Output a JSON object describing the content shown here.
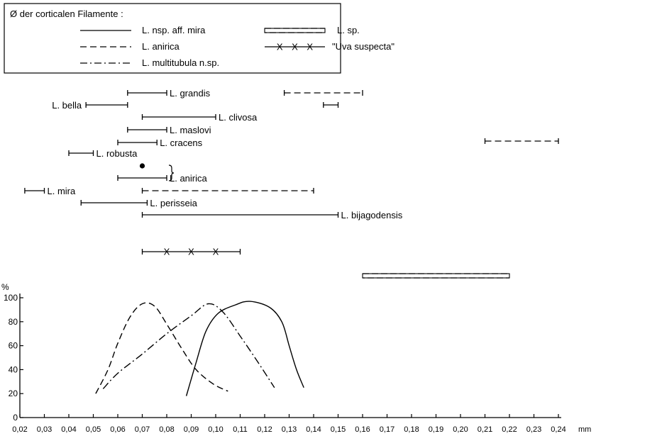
{
  "chart_data": [
    {
      "type": "range",
      "title": "Ø der corticalen Filamente :",
      "legend": [
        {
          "label": "L. nsp. aff. mira",
          "style": "solid"
        },
        {
          "label": "L. sp.",
          "style": "double-dashed"
        },
        {
          "label": "L. anirica",
          "style": "dashed"
        },
        {
          "label": "\"Uva suspecta\"",
          "style": "cross"
        },
        {
          "label": "L. multitubula n.sp.",
          "style": "dashdot"
        }
      ],
      "ranges": [
        {
          "label": "L. grandis",
          "style": "solid",
          "x": [
            0.064,
            0.08
          ]
        },
        {
          "label": "",
          "style": "dashed",
          "x": [
            0.128,
            0.16
          ]
        },
        {
          "label": "L. bella",
          "style": "solid",
          "x": [
            0.047,
            0.064
          ]
        },
        {
          "label": "",
          "style": "solid",
          "x": [
            0.144,
            0.15
          ]
        },
        {
          "label": "L. clivosa",
          "style": "solid",
          "x": [
            0.07,
            0.1
          ]
        },
        {
          "label": "L. maslovi",
          "style": "solid",
          "x": [
            0.064,
            0.08
          ]
        },
        {
          "label": "L. cracens",
          "style": "solid",
          "x": [
            0.06,
            0.076
          ]
        },
        {
          "label": "",
          "style": "dashed",
          "x": [
            0.21,
            0.24
          ]
        },
        {
          "label": "L. robusta",
          "style": "solid",
          "x": [
            0.04,
            0.05
          ]
        },
        {
          "label": "L. anirica",
          "style": "solid",
          "x": [
            0.06,
            0.08
          ]
        },
        {
          "label": "L. mira",
          "style": "solid",
          "x": [
            0.022,
            0.03
          ]
        },
        {
          "label": "",
          "style": "dashed",
          "x": [
            0.07,
            0.14
          ]
        },
        {
          "label": "L. perisseia",
          "style": "solid",
          "x": [
            0.045,
            0.072
          ]
        },
        {
          "label": "L. bijagodensis",
          "style": "solid",
          "x": [
            0.07,
            0.15
          ]
        },
        {
          "label": "",
          "style": "cross",
          "x": [
            0.07,
            0.11
          ]
        },
        {
          "label": "",
          "style": "double-dashed",
          "x": [
            0.16,
            0.22
          ]
        }
      ],
      "points": [
        {
          "x": 0.07
        }
      ]
    },
    {
      "type": "line",
      "xlabel": "mm",
      "ylabel": "%",
      "xlim": [
        0.02,
        0.24
      ],
      "ylim": [
        0,
        100
      ],
      "xticks": [
        "0,02",
        "0,03",
        "0,04",
        "0,05",
        "0,06",
        "0,07",
        "0,08",
        "0,09",
        "0,10",
        "0,11",
        "0,12",
        "0,13",
        "0,14",
        "0,15",
        "0,16",
        "0,17",
        "0,18",
        "0,19",
        "0,20",
        "0,21",
        "0,22",
        "0,23",
        "0,24"
      ],
      "yticks": [
        "0",
        "20",
        "40",
        "60",
        "80",
        "100"
      ],
      "series": [
        {
          "style": "dashed",
          "x": [
            0.051,
            0.056,
            0.06,
            0.065,
            0.07,
            0.075,
            0.08,
            0.086,
            0.092,
            0.099,
            0.105
          ],
          "y": [
            20,
            40,
            62,
            84,
            95,
            93,
            78,
            58,
            40,
            28,
            22
          ]
        },
        {
          "style": "dashdot",
          "x": [
            0.054,
            0.06,
            0.07,
            0.08,
            0.09,
            0.097,
            0.103,
            0.11,
            0.117,
            0.124
          ],
          "y": [
            24,
            37,
            53,
            70,
            85,
            95,
            88,
            68,
            47,
            25
          ]
        },
        {
          "style": "solid",
          "x": [
            0.088,
            0.092,
            0.096,
            0.101,
            0.108,
            0.114,
            0.122,
            0.127,
            0.13,
            0.133,
            0.136
          ],
          "y": [
            18,
            46,
            72,
            87,
            94,
            97,
            92,
            80,
            60,
            40,
            25
          ]
        }
      ]
    }
  ]
}
